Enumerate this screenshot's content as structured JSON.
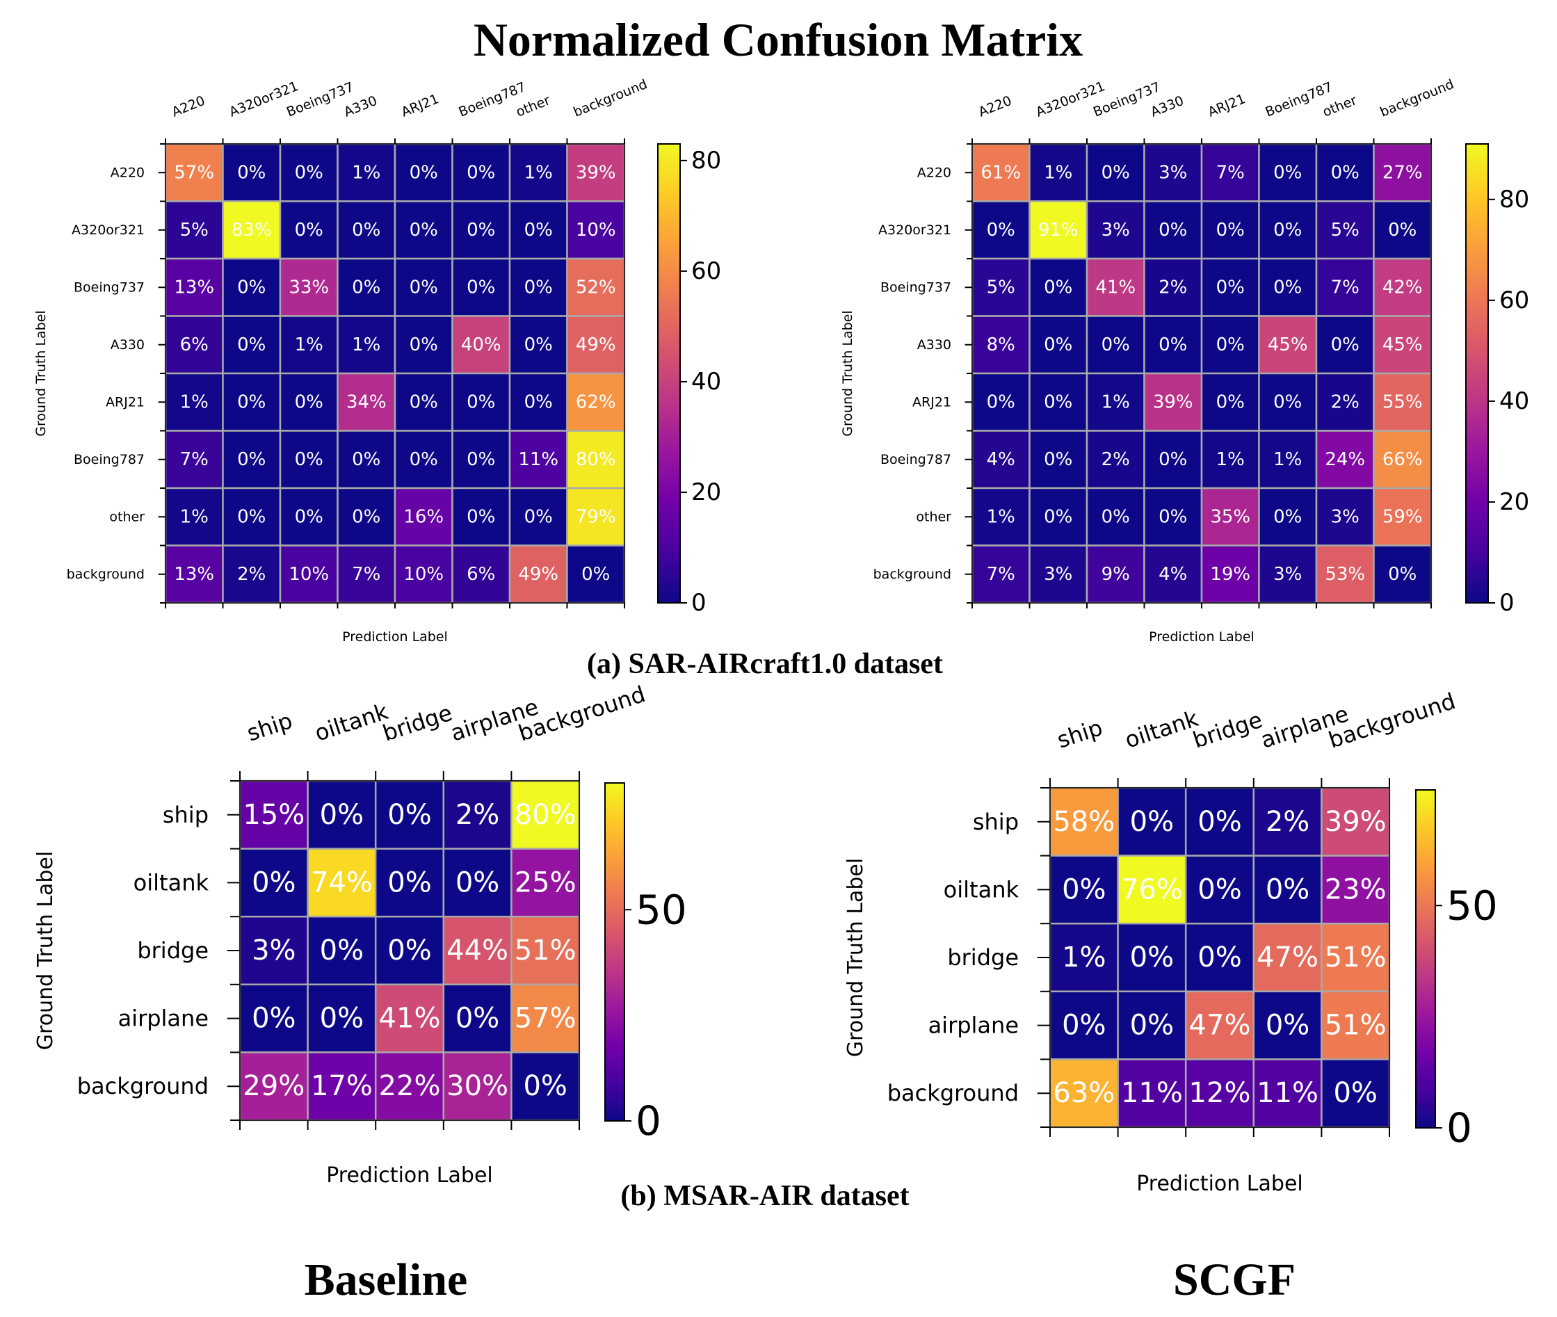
{
  "figure": {
    "title": "Normalized Confusion Matrix",
    "caption_a": "(a) SAR-AIRcraft1.0 dataset",
    "caption_b": "(b) MSAR-AIR dataset",
    "label_left": "Baseline",
    "label_right": "SCGF"
  },
  "colors": {
    "cell_border": "#a9a9a9",
    "colormap": [
      "#0d0887",
      "#46039f",
      "#7201a8",
      "#9c179e",
      "#bd3786",
      "#d8576b",
      "#ed7953",
      "#fb9f3a",
      "#fdca26",
      "#f0f921"
    ]
  },
  "chart_data": [
    {
      "type": "heatmap",
      "panel": "a-baseline",
      "xlabel": "Prediction Label",
      "ylabel": "Ground Truth Label",
      "categories": [
        "A220",
        "A320or321",
        "Boeing737",
        "A330",
        "ARJ21",
        "Boeing787",
        "other",
        "background"
      ],
      "vmin": 0,
      "vmax": 83,
      "colorbar_ticks": [
        "0",
        "20",
        "40",
        "60",
        "80"
      ],
      "colorbar_tick_values": [
        0,
        20,
        40,
        60,
        80
      ],
      "values": [
        [
          57,
          0,
          0,
          1,
          0,
          0,
          1,
          39
        ],
        [
          5,
          83,
          0,
          0,
          0,
          0,
          0,
          10
        ],
        [
          13,
          0,
          33,
          0,
          0,
          0,
          0,
          52
        ],
        [
          6,
          0,
          1,
          1,
          0,
          40,
          0,
          49
        ],
        [
          1,
          0,
          0,
          34,
          0,
          0,
          0,
          62
        ],
        [
          7,
          0,
          0,
          0,
          0,
          0,
          11,
          80
        ],
        [
          1,
          0,
          0,
          0,
          16,
          0,
          0,
          79
        ],
        [
          13,
          2,
          10,
          7,
          10,
          6,
          49,
          0
        ]
      ]
    },
    {
      "type": "heatmap",
      "panel": "a-scgf",
      "xlabel": "Prediction Label",
      "ylabel": "Ground Truth Label",
      "categories": [
        "A220",
        "A320or321",
        "Boeing737",
        "A330",
        "ARJ21",
        "Boeing787",
        "other",
        "background"
      ],
      "vmin": 0,
      "vmax": 91,
      "colorbar_ticks": [
        "0",
        "20",
        "40",
        "60",
        "80"
      ],
      "colorbar_tick_values": [
        0,
        20,
        40,
        60,
        80
      ],
      "values": [
        [
          61,
          1,
          0,
          3,
          7,
          0,
          0,
          27
        ],
        [
          0,
          91,
          3,
          0,
          0,
          0,
          5,
          0
        ],
        [
          5,
          0,
          41,
          2,
          0,
          0,
          7,
          42
        ],
        [
          8,
          0,
          0,
          0,
          0,
          45,
          0,
          45
        ],
        [
          0,
          0,
          1,
          39,
          0,
          0,
          2,
          55
        ],
        [
          4,
          0,
          2,
          0,
          1,
          1,
          24,
          66
        ],
        [
          1,
          0,
          0,
          0,
          35,
          0,
          3,
          59
        ],
        [
          7,
          3,
          9,
          4,
          19,
          3,
          53,
          0
        ]
      ]
    },
    {
      "type": "heatmap",
      "panel": "b-baseline",
      "xlabel": "Prediction Label",
      "ylabel": "Ground Truth Label",
      "categories": [
        "ship",
        "oiltank",
        "bridge",
        "airplane",
        "background"
      ],
      "vmin": 0,
      "vmax": 80,
      "colorbar_ticks": [
        "0",
        "50"
      ],
      "colorbar_tick_values": [
        0,
        50
      ],
      "values": [
        [
          15,
          0,
          0,
          2,
          80
        ],
        [
          0,
          74,
          0,
          0,
          25
        ],
        [
          3,
          0,
          0,
          44,
          51
        ],
        [
          0,
          0,
          41,
          0,
          57
        ],
        [
          29,
          17,
          22,
          30,
          0
        ]
      ]
    },
    {
      "type": "heatmap",
      "panel": "b-scgf",
      "xlabel": "Prediction Label",
      "ylabel": "Ground Truth Label",
      "categories": [
        "ship",
        "oiltank",
        "bridge",
        "airplane",
        "background"
      ],
      "vmin": 0,
      "vmax": 76,
      "colorbar_ticks": [
        "0",
        "50"
      ],
      "colorbar_tick_values": [
        0,
        50
      ],
      "values": [
        [
          58,
          0,
          0,
          2,
          39
        ],
        [
          0,
          76,
          0,
          0,
          23
        ],
        [
          1,
          0,
          0,
          47,
          51
        ],
        [
          0,
          0,
          47,
          0,
          51
        ],
        [
          63,
          11,
          12,
          11,
          0
        ]
      ]
    }
  ]
}
